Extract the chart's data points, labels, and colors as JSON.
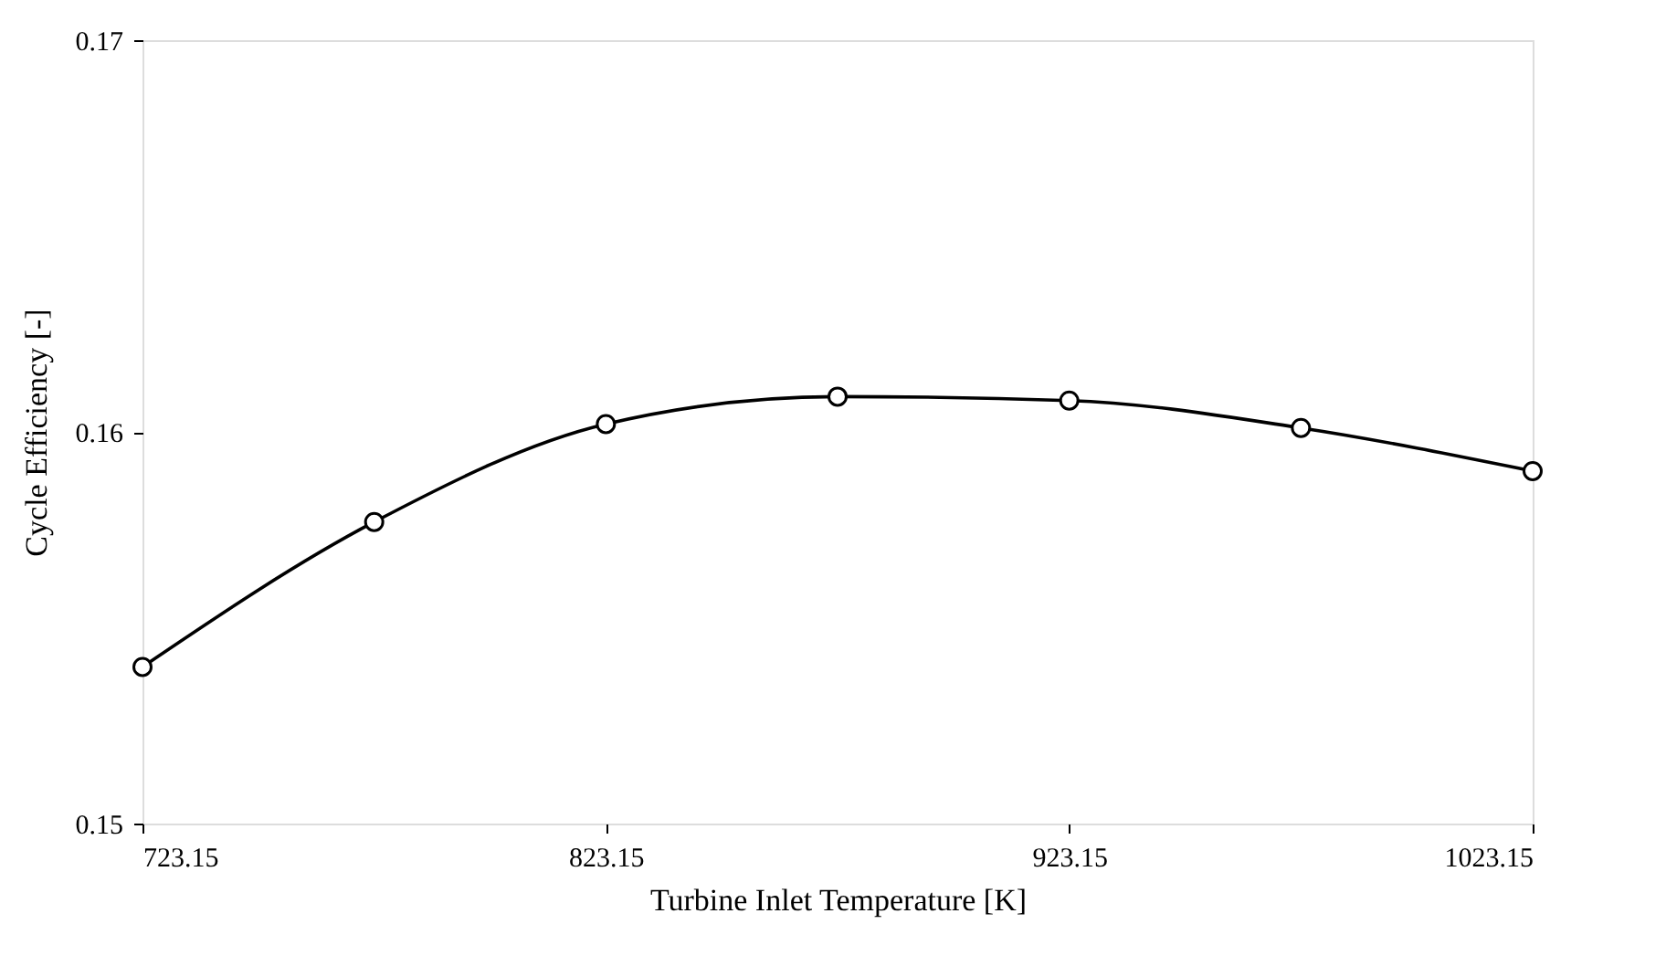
{
  "chart_data": {
    "type": "line",
    "xlabel": "Turbine Inlet Temperature [K]",
    "ylabel": "Cycle Efficiency [-]",
    "x": [
      723.15,
      773.15,
      823.15,
      873.15,
      923.15,
      973.15,
      1023.15
    ],
    "series": [
      {
        "color": "#000000",
        "values": [
          0.154,
          0.1577,
          0.1602,
          0.1609,
          0.1608,
          0.1601,
          0.159
        ]
      }
    ],
    "xlim": [
      723.15,
      1023.15
    ],
    "xticks": [
      723.15,
      823.15,
      923.15,
      1023.15
    ],
    "ylim": [
      0.15,
      0.17
    ],
    "yticks": [
      0.15,
      0.16,
      0.17
    ],
    "grid": false,
    "legend": false,
    "marker": "circle",
    "line_style": "solid"
  }
}
